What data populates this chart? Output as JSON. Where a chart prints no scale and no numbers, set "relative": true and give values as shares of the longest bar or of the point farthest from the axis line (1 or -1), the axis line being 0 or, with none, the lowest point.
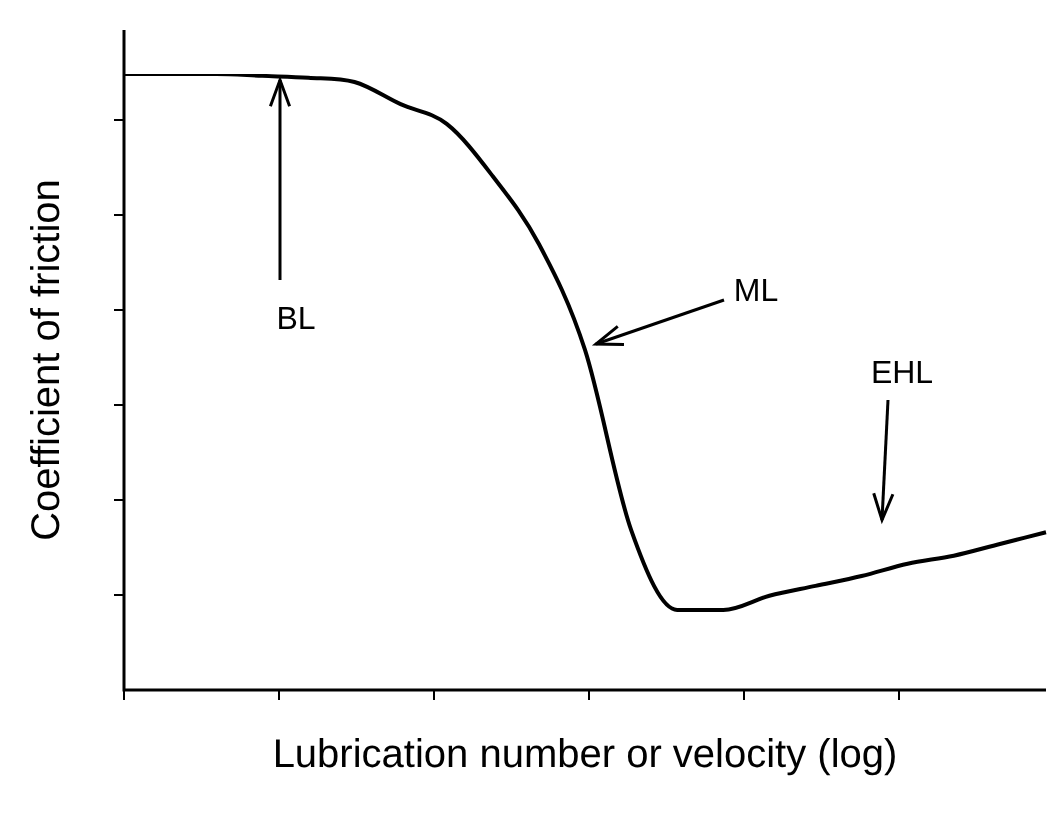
{
  "chart_data": {
    "type": "line",
    "relative": true,
    "xlabel": "Lubrication number or velocity (log)",
    "ylabel": "Coefficient of friction",
    "categories": [
      null,
      null,
      null,
      null,
      null,
      null,
      null,
      null,
      null,
      null,
      null,
      null,
      null,
      null,
      null,
      null,
      null,
      null,
      null,
      null,
      null
    ],
    "series": [
      {
        "color": "#000000",
        "values": [
          1,
          1,
          1,
          0.997,
          0.994,
          0.987,
          0.951,
          0.919,
          0.834,
          0.724,
          0.552,
          0.26,
          0.13,
          0.13,
          0.153,
          0.169,
          0.185,
          0.205,
          0.218,
          0.237,
          0.256
        ]
      }
    ],
    "annotations": [
      "BL",
      "ML",
      "EHL"
    ],
    "marker": "none",
    "line_style": "solid",
    "legend": false
  }
}
